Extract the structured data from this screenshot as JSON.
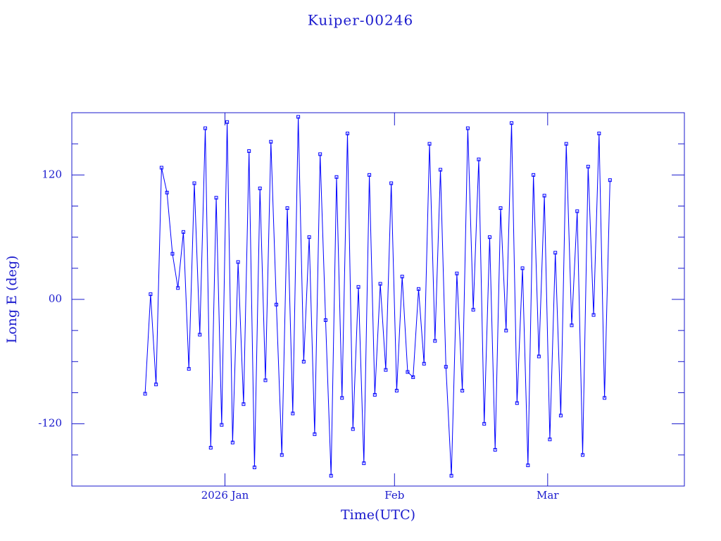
{
  "chart_data": {
    "type": "line",
    "title": "Kuiper-00246",
    "x_label": "Time(UTC)",
    "y_label": "Long E (deg)",
    "color": "#0000ff",
    "xlim": [
      -28,
      84
    ],
    "xticks": [
      {
        "value": 0,
        "label": "2026 Jan"
      },
      {
        "value": 31,
        "label": "Feb"
      },
      {
        "value": 59,
        "label": "Mar"
      }
    ],
    "ylim": [
      -180,
      180
    ],
    "yticks": [
      -120,
      {
        "value": 0,
        "label": "00"
      },
      120
    ],
    "yminorticks": [
      -150,
      -90,
      -60,
      -30,
      30,
      60,
      90,
      150
    ],
    "x": [
      -14.6,
      -13.6,
      -12.6,
      -11.6,
      -10.6,
      -9.6,
      -8.6,
      -7.6,
      -6.6,
      -5.6,
      -4.6,
      -3.6,
      -2.6,
      -1.6,
      -0.6,
      0.4,
      1.4,
      2.4,
      3.4,
      4.4,
      5.4,
      6.4,
      7.4,
      8.4,
      9.4,
      10.4,
      11.4,
      12.4,
      13.4,
      14.4,
      15.4,
      16.4,
      17.4,
      18.4,
      19.4,
      20.4,
      21.4,
      22.4,
      23.4,
      24.4,
      25.4,
      26.4,
      27.4,
      28.4,
      29.4,
      30.4,
      31.4,
      32.4,
      33.4,
      34.4,
      35.4,
      36.4,
      37.4,
      38.4,
      39.4,
      40.4,
      41.4,
      42.4,
      43.4,
      44.4,
      45.4,
      46.4,
      47.4,
      48.4,
      49.4,
      50.4,
      51.4,
      52.4,
      53.4,
      54.4,
      55.4,
      56.4,
      57.4,
      58.4,
      59.4,
      60.4,
      61.4,
      62.4,
      63.4,
      64.4,
      65.4,
      66.4,
      67.4,
      68.4,
      69.4,
      70.4
    ],
    "values": [
      -91,
      5,
      -82,
      127,
      103,
      44,
      11,
      65,
      -67,
      112,
      -34,
      165,
      -143,
      98,
      -121,
      171,
      -138,
      36,
      -101,
      143,
      -162,
      107,
      -78,
      152,
      -5,
      -150,
      88,
      -110,
      176,
      -60,
      60,
      -130,
      140,
      -20,
      -170,
      118,
      -95,
      160,
      -125,
      12,
      -158,
      120,
      -92,
      15,
      -68,
      112,
      -88,
      22,
      -70,
      -75,
      10,
      -62,
      150,
      -40,
      125,
      -65,
      -170,
      25,
      -88,
      165,
      -10,
      135,
      -120,
      60,
      -145,
      88,
      -30,
      170,
      -100,
      30,
      -160,
      120,
      -55,
      100,
      -135,
      45,
      -112,
      150,
      -25,
      85,
      -150,
      128,
      -15,
      160,
      -95,
      115
    ]
  }
}
